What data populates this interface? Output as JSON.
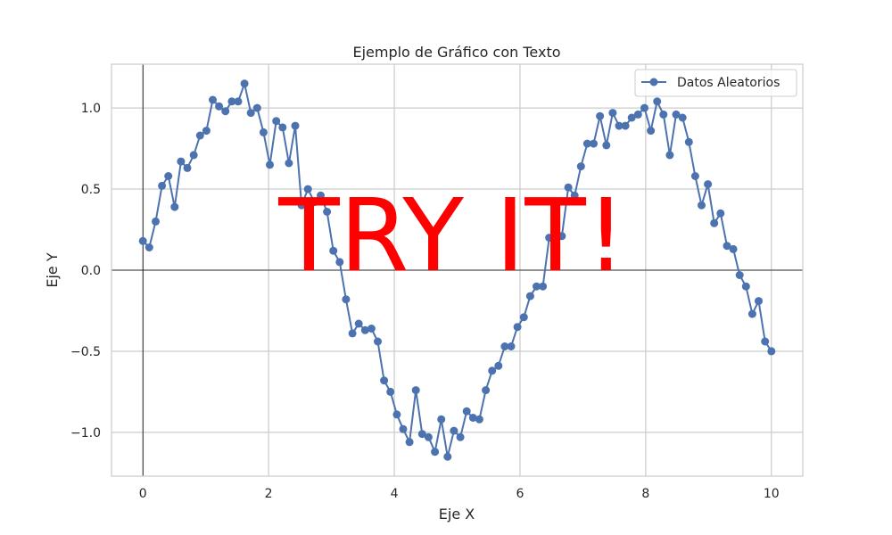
{
  "chart_data": {
    "type": "line",
    "title": "Ejemplo de Gráfico con Texto",
    "xlabel": "Eje X",
    "ylabel": "Eje Y",
    "xlim": [
      -0.5,
      10.5
    ],
    "ylim": [
      -1.27,
      1.27
    ],
    "xticks": [
      0,
      2,
      4,
      6,
      8,
      10
    ],
    "xtick_labels": [
      "0",
      "2",
      "4",
      "6",
      "8",
      "10"
    ],
    "yticks": [
      -1.0,
      -0.5,
      0.0,
      0.5,
      1.0
    ],
    "ytick_labels": [
      "−1.0",
      "−0.5",
      "0.0",
      "0.5",
      "1.0"
    ],
    "grid": true,
    "legend_position": "upper right",
    "overlay_text": "TRY IT!",
    "overlay_color": "#ff0000",
    "series": [
      {
        "name": "Datos Aleatorios",
        "color": "#4c72b0",
        "marker": "circle",
        "x": [
          0.0,
          0.101,
          0.202,
          0.303,
          0.404,
          0.505,
          0.606,
          0.707,
          0.808,
          0.909,
          1.01,
          1.111,
          1.212,
          1.313,
          1.414,
          1.515,
          1.616,
          1.717,
          1.818,
          1.919,
          2.02,
          2.121,
          2.222,
          2.323,
          2.424,
          2.525,
          2.626,
          2.727,
          2.828,
          2.929,
          3.03,
          3.131,
          3.232,
          3.333,
          3.434,
          3.535,
          3.636,
          3.737,
          3.838,
          3.939,
          4.04,
          4.141,
          4.242,
          4.343,
          4.444,
          4.545,
          4.646,
          4.747,
          4.848,
          4.949,
          5.051,
          5.152,
          5.253,
          5.354,
          5.455,
          5.556,
          5.657,
          5.758,
          5.859,
          5.96,
          6.061,
          6.162,
          6.263,
          6.364,
          6.465,
          6.566,
          6.667,
          6.768,
          6.869,
          6.97,
          7.071,
          7.172,
          7.273,
          7.374,
          7.475,
          7.576,
          7.677,
          7.778,
          7.879,
          7.98,
          8.081,
          8.182,
          8.283,
          8.384,
          8.485,
          8.586,
          8.687,
          8.788,
          8.889,
          8.99,
          9.091,
          9.192,
          9.293,
          9.394,
          9.495,
          9.596,
          9.697,
          9.798,
          9.899,
          10.0
        ],
        "y": [
          0.18,
          0.14,
          0.3,
          0.52,
          0.58,
          0.39,
          0.67,
          0.63,
          0.71,
          0.83,
          0.86,
          1.05,
          1.01,
          0.98,
          1.04,
          1.04,
          1.15,
          0.97,
          1.0,
          0.85,
          0.65,
          0.92,
          0.88,
          0.66,
          0.89,
          0.4,
          0.5,
          0.42,
          0.46,
          0.36,
          0.12,
          0.05,
          -0.18,
          -0.39,
          -0.33,
          -0.37,
          -0.36,
          -0.44,
          -0.68,
          -0.75,
          -0.89,
          -0.98,
          -1.06,
          -0.74,
          -1.01,
          -1.03,
          -1.12,
          -0.92,
          -1.15,
          -0.99,
          -1.03,
          -0.87,
          -0.91,
          -0.92,
          -0.74,
          -0.62,
          -0.59,
          -0.47,
          -0.47,
          -0.35,
          -0.29,
          -0.16,
          -0.1,
          -0.1,
          0.2,
          0.23,
          0.21,
          0.51,
          0.46,
          0.64,
          0.78,
          0.78,
          0.95,
          0.77,
          0.97,
          0.89,
          0.89,
          0.94,
          0.96,
          1.0,
          0.86,
          1.04,
          0.96,
          0.71,
          0.96,
          0.94,
          0.79,
          0.58,
          0.4,
          0.53,
          0.29,
          0.35,
          0.15,
          0.13,
          -0.03,
          -0.1,
          -0.27,
          -0.19,
          -0.44,
          -0.5
        ]
      }
    ]
  }
}
